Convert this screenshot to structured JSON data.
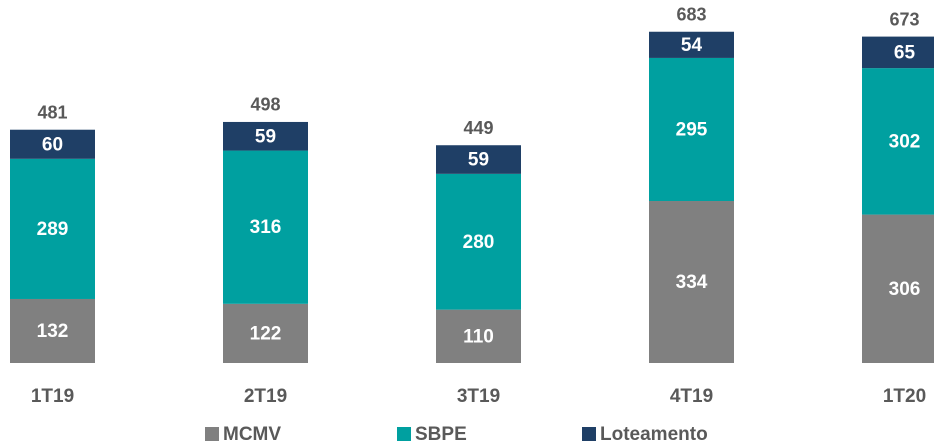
{
  "chart_data": {
    "type": "stacked_bar",
    "categories": [
      "1T19",
      "2T19",
      "3T19",
      "4T19",
      "1T20"
    ],
    "series": [
      {
        "name": "MCMV",
        "color": "#808080",
        "values": [
          132,
          122,
          110,
          334,
          306
        ]
      },
      {
        "name": "SBPE",
        "color": "#00a0a0",
        "values": [
          289,
          316,
          280,
          295,
          302
        ]
      },
      {
        "name": "Loteamento",
        "color": "#1f3f66",
        "values": [
          60,
          59,
          59,
          54,
          65
        ]
      }
    ],
    "totals": [
      481,
      498,
      449,
      683,
      673
    ]
  }
}
